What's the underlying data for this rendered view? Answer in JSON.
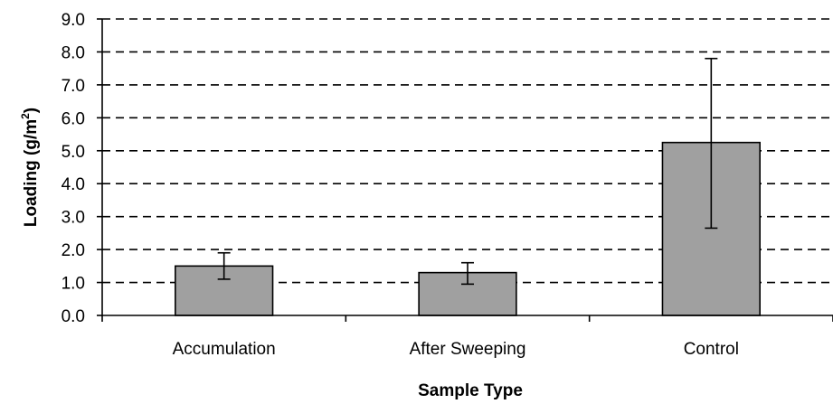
{
  "chart_data": {
    "type": "bar",
    "categories": [
      "Accumulation",
      "After Sweeping",
      "Control"
    ],
    "values": [
      1.5,
      1.3,
      5.25
    ],
    "error_low": [
      1.1,
      0.95,
      2.65
    ],
    "error_high": [
      1.9,
      1.6,
      7.8
    ],
    "xlabel": "Sample Type",
    "ylabel_main": "Loading (g/m",
    "ylabel_sup": "2",
    "ylabel_close": ")",
    "ylim": [
      0,
      9
    ],
    "yticks": [
      "0.0",
      "1.0",
      "2.0",
      "3.0",
      "4.0",
      "5.0",
      "6.0",
      "7.0",
      "8.0",
      "9.0"
    ],
    "grid": "dashed horizontal",
    "colors": {
      "bar": "#a0a0a0",
      "outline": "#000000"
    }
  }
}
